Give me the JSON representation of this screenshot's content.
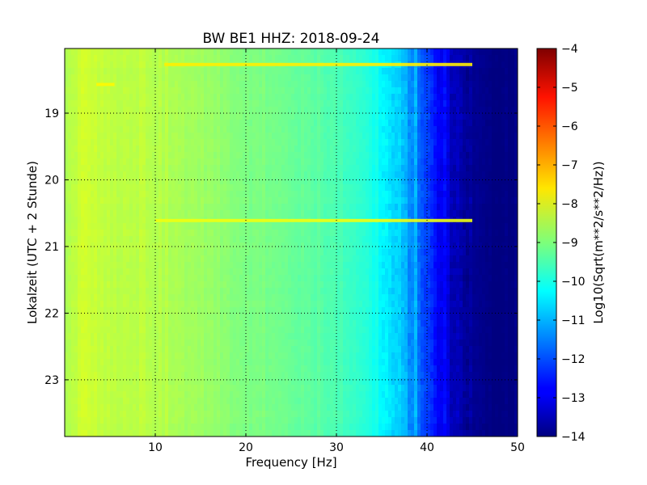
{
  "chart_data": {
    "type": "heatmap",
    "title": "BW BE1 HHZ: 2018-09-24",
    "xlabel": "Frequency [Hz]",
    "ylabel": "Lokalzeit (UTC + 2 Stunde)",
    "xlim": [
      0,
      50
    ],
    "ylim": [
      18.03,
      23.85
    ],
    "y_axis_inverted": true,
    "x_ticks": [
      10,
      20,
      30,
      40,
      50
    ],
    "y_ticks": [
      19,
      20,
      21,
      22,
      23
    ],
    "grid": true,
    "colormap": "jet",
    "colorbar": {
      "label": "Log10(Sqrt(m**2/s**2/Hz))",
      "range": [
        -14,
        -4
      ],
      "ticks": [
        -4,
        -5,
        -6,
        -7,
        -8,
        -9,
        -10,
        -11,
        -12,
        -13,
        -14
      ]
    },
    "frequency_profile": {
      "x": [
        0,
        2,
        5,
        10,
        15,
        20,
        25,
        30,
        33,
        35,
        37,
        39,
        41,
        43,
        45,
        47,
        50
      ],
      "log_value": [
        -8.6,
        -8.2,
        -8.4,
        -8.5,
        -8.7,
        -9.0,
        -9.2,
        -9.5,
        -9.8,
        -10.3,
        -10.8,
        -11.6,
        -12.7,
        -13.4,
        -13.8,
        -14.0,
        -14.0
      ]
    },
    "horizontal_lines": [
      {
        "time": 18.27,
        "x_from": 11,
        "x_to": 45,
        "log_value": -7.6
      },
      {
        "time": 20.61,
        "x_from": 10,
        "x_to": 45,
        "log_value": -7.9
      },
      {
        "time": 18.57,
        "x_from": 3.5,
        "x_to": 5.5,
        "log_value": -7.7
      }
    ]
  }
}
